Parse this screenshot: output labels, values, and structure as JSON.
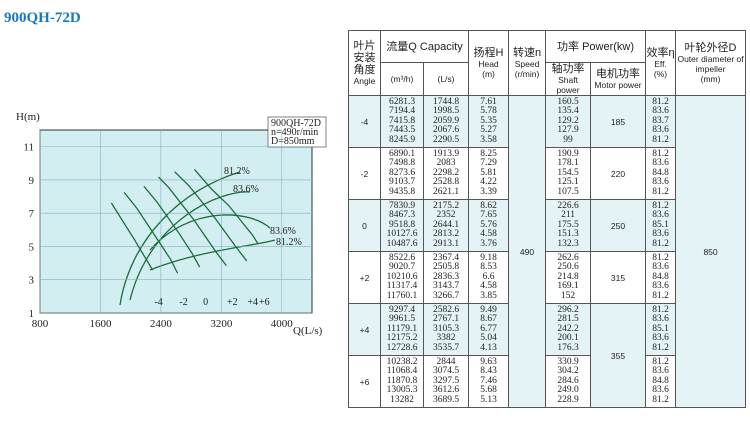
{
  "chart": {
    "title": "900QH-72D",
    "ylabel": "H(m)",
    "xlabel": "Q(L/s)",
    "note": [
      "900QH-72D",
      "n=490r/min",
      "D=850mm"
    ],
    "xlim": [
      800,
      4400
    ],
    "ylim": [
      1,
      12
    ],
    "xticks": [
      800,
      1600,
      2400,
      3200,
      4000
    ],
    "yticks": [
      1,
      3,
      5,
      7,
      9,
      11
    ],
    "eff_labels": [
      "81.2%",
      "83.6%",
      "83.6%",
      "81.2%"
    ]
  },
  "table": {
    "header": {
      "angle": [
        "叶片安装角度",
        "Angle"
      ],
      "capacity": "流量Q Capacity",
      "q_m3h": "(m³/h)",
      "q_ls": "(L/s)",
      "head": [
        "扬程H",
        "Head",
        "(m)"
      ],
      "speed": [
        "转速n",
        "Speed",
        "(r/min)"
      ],
      "power": "功率 Power(kw)",
      "shaft": [
        "轴功率",
        "Shaft power"
      ],
      "motor": [
        "电机功率",
        "Motor power"
      ],
      "eff": [
        "效率η",
        "Eff.",
        "(%)"
      ],
      "diameter": [
        "叶轮外径D",
        "Outer diameter of impeller",
        "(mm)"
      ]
    },
    "speed": 490,
    "diameter": 850,
    "motor_power": [
      185,
      220,
      250,
      315,
      355
    ],
    "groups": [
      {
        "angle": "-4",
        "q_m3h": [
          6281.3,
          7194.4,
          7415.8,
          7443.5,
          8245.9
        ],
        "q_ls": [
          1744.8,
          1998.5,
          2059.9,
          2067.6,
          2290.5
        ],
        "head": [
          7.61,
          5.78,
          5.35,
          5.27,
          3.58
        ],
        "shaft": [
          160.5,
          135.4,
          129.2,
          127.9,
          99
        ],
        "eff": [
          81.2,
          83.6,
          83.7,
          83.6,
          81.2
        ]
      },
      {
        "angle": "-2",
        "q_m3h": [
          6890.1,
          7498.8,
          8273.6,
          9103.7,
          9435.8
        ],
        "q_ls": [
          1913.9,
          2083,
          2298.2,
          2528.8,
          2621.1
        ],
        "head": [
          8.25,
          7.29,
          5.81,
          4.22,
          3.39
        ],
        "shaft": [
          190.9,
          178.1,
          154.5,
          125.1,
          107.5
        ],
        "eff": [
          81.2,
          83.6,
          84.8,
          83.6,
          81.2
        ]
      },
      {
        "angle": "0",
        "q_m3h": [
          7830.9,
          8467.3,
          9518.8,
          10127.6,
          10487.6
        ],
        "q_ls": [
          2175.2,
          2352,
          2644.1,
          2813.2,
          2913.1
        ],
        "head": [
          8.62,
          7.65,
          5.76,
          4.58,
          3.76
        ],
        "shaft": [
          226.6,
          211,
          175.5,
          151.3,
          132.3
        ],
        "eff": [
          81.2,
          83.6,
          85.1,
          83.6,
          81.2
        ]
      },
      {
        "angle": "+2",
        "q_m3h": [
          8522.6,
          9020.7,
          10210.6,
          11317.4,
          11760.1
        ],
        "q_ls": [
          2367.4,
          2505.8,
          2836.3,
          3143.7,
          3266.7
        ],
        "head": [
          9.18,
          8.53,
          6.6,
          4.58,
          3.85
        ],
        "shaft": [
          262.6,
          250.6,
          214.8,
          169.1,
          152
        ],
        "eff": [
          81.2,
          83.6,
          84.8,
          83.6,
          81.2
        ]
      },
      {
        "angle": "+4",
        "q_m3h": [
          9297.4,
          9961.5,
          11179.1,
          12175.2,
          12728.6
        ],
        "q_ls": [
          2582.6,
          2767.1,
          3105.3,
          3382,
          3535.7
        ],
        "head": [
          9.49,
          8.67,
          6.77,
          5.04,
          4.13
        ],
        "shaft": [
          296.2,
          281.5,
          242.2,
          200.1,
          176.3
        ],
        "eff": [
          81.2,
          83.6,
          85.1,
          83.6,
          81.2
        ]
      },
      {
        "angle": "+6",
        "q_m3h": [
          10238.2,
          11068.4,
          11870.8,
          13005.3,
          13282
        ],
        "q_ls": [
          2844,
          3074.5,
          3297.5,
          3612.6,
          3689.5
        ],
        "head": [
          9.63,
          8.43,
          7.46,
          5.68,
          5.13
        ],
        "shaft": [
          330.9,
          304.2,
          284.6,
          "249.0",
          228.9
        ],
        "eff": [
          81.2,
          83.6,
          84.8,
          83.6,
          81.2
        ]
      }
    ]
  }
}
